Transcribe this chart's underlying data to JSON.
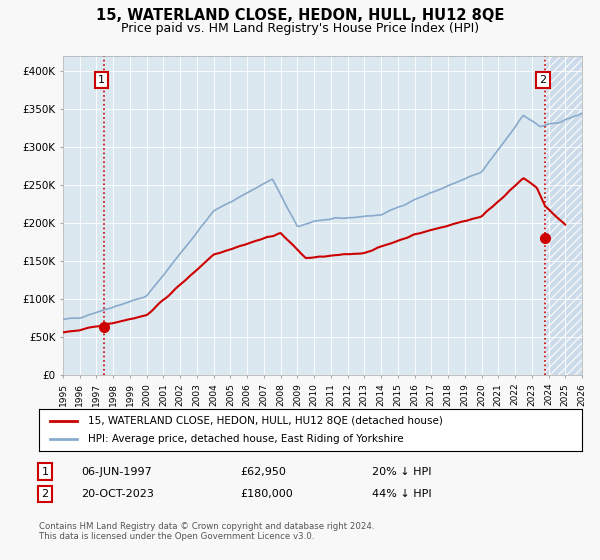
{
  "title": "15, WATERLAND CLOSE, HEDON, HULL, HU12 8QE",
  "subtitle": "Price paid vs. HM Land Registry's House Price Index (HPI)",
  "title_fontsize": 10.5,
  "subtitle_fontsize": 9,
  "sale1_date": 1997.44,
  "sale1_price": 62950,
  "sale2_date": 2023.8,
  "sale2_price": 180000,
  "ylim": [
    0,
    420000
  ],
  "xlim": [
    1995,
    2026.0
  ],
  "yticks": [
    0,
    50000,
    100000,
    150000,
    200000,
    250000,
    300000,
    350000,
    400000
  ],
  "ytick_labels": [
    "£0",
    "£50K",
    "£100K",
    "£150K",
    "£200K",
    "£250K",
    "£300K",
    "£350K",
    "£400K"
  ],
  "xticks": [
    1995,
    1996,
    1997,
    1998,
    1999,
    2000,
    2001,
    2002,
    2003,
    2004,
    2005,
    2006,
    2007,
    2008,
    2009,
    2010,
    2011,
    2012,
    2013,
    2014,
    2015,
    2016,
    2017,
    2018,
    2019,
    2020,
    2021,
    2022,
    2023,
    2024,
    2025,
    2026
  ],
  "red_color": "#cc0000",
  "blue_color": "#88aacc",
  "fig_bg_color": "#f8f8f8",
  "plot_bg_color": "#dce8f0",
  "hatch_bg_color": "#c8d8e8",
  "legend_label1": "15, WATERLAND CLOSE, HEDON, HULL, HU12 8QE (detached house)",
  "legend_label2": "HPI: Average price, detached house, East Riding of Yorkshire",
  "note1_label": "1",
  "note1_date": "06-JUN-1997",
  "note1_price": "£62,950",
  "note1_hpi": "20% ↓ HPI",
  "note2_label": "2",
  "note2_date": "20-OCT-2023",
  "note2_price": "£180,000",
  "note2_hpi": "44% ↓ HPI",
  "footer": "Contains HM Land Registry data © Crown copyright and database right 2024.\nThis data is licensed under the Open Government Licence v3.0.",
  "grid_color": "#ffffff"
}
